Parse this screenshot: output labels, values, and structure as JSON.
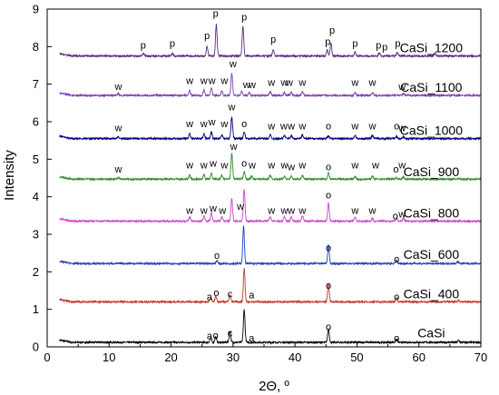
{
  "chart_data": {
    "type": "line",
    "title": "",
    "xlabel": "2Θ, º",
    "ylabel": "Intensity",
    "xlim": [
      0,
      70
    ],
    "ylim": [
      0,
      9
    ],
    "xticks": [
      0,
      10,
      20,
      30,
      40,
      50,
      60,
      70
    ],
    "yticks": [
      0,
      1,
      2,
      3,
      4,
      5,
      6,
      7,
      8,
      9
    ],
    "grid": false,
    "x_range": [
      2,
      70
    ],
    "series": [
      {
        "name": "CaSi",
        "color": "#000000",
        "baseline": 0.12,
        "peaks": [
          [
            26.4,
            0.12
          ],
          [
            27.2,
            0.15
          ],
          [
            29.5,
            0.3
          ],
          [
            31.8,
            0.88
          ],
          [
            45.4,
            0.36
          ],
          [
            56.4,
            0.08
          ],
          [
            66.4,
            0.05
          ]
        ]
      },
      {
        "name": "CaSi_400",
        "color": "#c0392b",
        "baseline": 1.2,
        "peaks": [
          [
            26.4,
            0.1
          ],
          [
            27.2,
            0.14
          ],
          [
            29.5,
            0.18
          ],
          [
            31.8,
            0.9
          ],
          [
            45.4,
            0.48
          ],
          [
            56.4,
            0.12
          ],
          [
            66.4,
            0.05
          ]
        ]
      },
      {
        "name": "CaSi_600",
        "color": "#1f3fbf",
        "baseline": 2.22,
        "peaks": [
          [
            27.4,
            0.08
          ],
          [
            31.7,
            1.0
          ],
          [
            45.4,
            0.48
          ],
          [
            56.4,
            0.08
          ],
          [
            66.3,
            0.05
          ]
        ]
      },
      {
        "name": "CaSi_800",
        "color": "#cc44cc",
        "baseline": 3.35,
        "peaks": [
          [
            23.0,
            0.12
          ],
          [
            25.3,
            0.15
          ],
          [
            26.5,
            0.22
          ],
          [
            28.2,
            0.12
          ],
          [
            29.8,
            0.6
          ],
          [
            31.8,
            0.85
          ],
          [
            36.0,
            0.12
          ],
          [
            38.3,
            0.12
          ],
          [
            39.4,
            0.12
          ],
          [
            41.2,
            0.15
          ],
          [
            45.4,
            0.48
          ],
          [
            49.7,
            0.12
          ],
          [
            52.5,
            0.08
          ],
          [
            56.4,
            0.08
          ],
          [
            57.5,
            0.08
          ]
        ]
      },
      {
        "name": "CaSi_900",
        "color": "#2e8b2e",
        "baseline": 4.47,
        "peaks": [
          [
            11.5,
            0.04
          ],
          [
            23.0,
            0.1
          ],
          [
            25.3,
            0.12
          ],
          [
            26.5,
            0.15
          ],
          [
            28.2,
            0.1
          ],
          [
            29.8,
            0.68
          ],
          [
            31.8,
            0.22
          ],
          [
            33.0,
            0.08
          ],
          [
            36.0,
            0.1
          ],
          [
            38.3,
            0.08
          ],
          [
            39.4,
            0.08
          ],
          [
            41.2,
            0.1
          ],
          [
            45.4,
            0.18
          ],
          [
            49.7,
            0.08
          ],
          [
            52.5,
            0.08
          ],
          [
            56.3,
            0.04
          ],
          [
            57.5,
            0.06
          ]
        ]
      },
      {
        "name": "CaSi_1000",
        "color": "#000080",
        "baseline": 5.55,
        "peaks": [
          [
            11.5,
            0.04
          ],
          [
            23.0,
            0.12
          ],
          [
            25.3,
            0.12
          ],
          [
            26.5,
            0.18
          ],
          [
            28.2,
            0.1
          ],
          [
            29.8,
            0.58
          ],
          [
            31.8,
            0.18
          ],
          [
            36.0,
            0.1
          ],
          [
            38.3,
            0.08
          ],
          [
            39.4,
            0.08
          ],
          [
            41.2,
            0.1
          ],
          [
            45.4,
            0.08
          ],
          [
            49.7,
            0.08
          ],
          [
            52.5,
            0.08
          ],
          [
            56.4,
            0.06
          ],
          [
            57.5,
            0.05
          ]
        ]
      },
      {
        "name": "CaSi_1100",
        "color": "#7b3fb0",
        "baseline": 6.7,
        "peaks": [
          [
            11.5,
            0.04
          ],
          [
            23.0,
            0.12
          ],
          [
            25.3,
            0.14
          ],
          [
            26.5,
            0.2
          ],
          [
            28.2,
            0.12
          ],
          [
            29.8,
            0.58
          ],
          [
            31.4,
            0.12
          ],
          [
            32.6,
            0.08
          ],
          [
            36.0,
            0.1
          ],
          [
            38.3,
            0.08
          ],
          [
            39.4,
            0.08
          ],
          [
            41.2,
            0.1
          ],
          [
            49.7,
            0.08
          ],
          [
            52.5,
            0.08
          ],
          [
            57.5,
            0.05
          ]
        ]
      },
      {
        "name": "CaSi_1200",
        "color": "#5a2d82",
        "baseline": 7.75,
        "peaks": [
          [
            15.5,
            0.08
          ],
          [
            20.2,
            0.07
          ],
          [
            25.8,
            0.25
          ],
          [
            27.3,
            0.85
          ],
          [
            31.6,
            0.8
          ],
          [
            36.5,
            0.18
          ],
          [
            45.2,
            0.16
          ],
          [
            45.8,
            0.35
          ],
          [
            49.7,
            0.1
          ],
          [
            53.6,
            0.08
          ],
          [
            56.5,
            0.1
          ],
          [
            62.6,
            0.08
          ]
        ]
      }
    ],
    "series_labels": [
      {
        "name": "CaSi",
        "x": 62,
        "y": 0.25
      },
      {
        "name": "CaSi_400",
        "x": 62,
        "y": 1.3
      },
      {
        "name": "CaSi_600",
        "x": 62,
        "y": 2.35
      },
      {
        "name": "CaSi_800",
        "x": 62,
        "y": 3.45
      },
      {
        "name": "CaSi_900",
        "x": 62,
        "y": 4.55
      },
      {
        "name": "CaSi_1000",
        "x": 62,
        "y": 5.65
      },
      {
        "name": "CaSi_1100",
        "x": 62,
        "y": 6.8
      },
      {
        "name": "CaSi_1200",
        "x": 62,
        "y": 7.85
      }
    ],
    "annotations": [
      {
        "text": "a",
        "x": 26.2,
        "y": 0.2
      },
      {
        "text": "o",
        "x": 27.2,
        "y": 0.22
      },
      {
        "text": "c",
        "x": 29.5,
        "y": 0.28
      },
      {
        "text": "a",
        "x": 33.0,
        "y": 0.15
      },
      {
        "text": "o",
        "x": 45.4,
        "y": 0.45
      },
      {
        "text": "o",
        "x": 56.4,
        "y": 0.15
      },
      {
        "text": "a",
        "x": 26.2,
        "y": 1.25
      },
      {
        "text": "o",
        "x": 27.3,
        "y": 1.35
      },
      {
        "text": "c",
        "x": 29.5,
        "y": 1.32
      },
      {
        "text": "a",
        "x": 33.0,
        "y": 1.3
      },
      {
        "text": "o",
        "x": 45.4,
        "y": 1.55
      },
      {
        "text": "o",
        "x": 56.4,
        "y": 1.25
      },
      {
        "text": "o",
        "x": 27.4,
        "y": 2.35
      },
      {
        "text": "o",
        "x": 45.4,
        "y": 2.55
      },
      {
        "text": "o",
        "x": 56.4,
        "y": 2.25
      },
      {
        "text": "w",
        "x": 23.0,
        "y": 3.55
      },
      {
        "text": "w",
        "x": 25.3,
        "y": 3.55
      },
      {
        "text": "w",
        "x": 26.8,
        "y": 3.6
      },
      {
        "text": "w",
        "x": 28.3,
        "y": 3.55
      },
      {
        "text": "w",
        "x": 31.2,
        "y": 3.65
      },
      {
        "text": "w",
        "x": 36.2,
        "y": 3.55
      },
      {
        "text": "w",
        "x": 38.3,
        "y": 3.55
      },
      {
        "text": "w",
        "x": 39.4,
        "y": 3.55
      },
      {
        "text": "w",
        "x": 41.2,
        "y": 3.55
      },
      {
        "text": "o",
        "x": 45.4,
        "y": 3.95
      },
      {
        "text": "w",
        "x": 49.7,
        "y": 3.55
      },
      {
        "text": "w",
        "x": 52.5,
        "y": 3.55
      },
      {
        "text": "o",
        "x": 56.2,
        "y": 3.4
      },
      {
        "text": "w",
        "x": 57.3,
        "y": 3.45
      },
      {
        "text": "w",
        "x": 11.5,
        "y": 4.65
      },
      {
        "text": "w",
        "x": 23.0,
        "y": 4.75
      },
      {
        "text": "w",
        "x": 25.3,
        "y": 4.75
      },
      {
        "text": "w",
        "x": 26.8,
        "y": 4.8
      },
      {
        "text": "w",
        "x": 28.6,
        "y": 4.75
      },
      {
        "text": "w",
        "x": 30.1,
        "y": 5.25
      },
      {
        "text": "o",
        "x": 31.8,
        "y": 4.8
      },
      {
        "text": "w",
        "x": 33.1,
        "y": 4.75
      },
      {
        "text": "w",
        "x": 36.2,
        "y": 4.75
      },
      {
        "text": "w",
        "x": 38.3,
        "y": 4.75
      },
      {
        "text": "w",
        "x": 39.4,
        "y": 4.7
      },
      {
        "text": "w",
        "x": 41.2,
        "y": 4.75
      },
      {
        "text": "o",
        "x": 45.4,
        "y": 4.7
      },
      {
        "text": "w",
        "x": 49.7,
        "y": 4.75
      },
      {
        "text": "w",
        "x": 53.0,
        "y": 4.75
      },
      {
        "text": "o",
        "x": 56.3,
        "y": 4.65
      },
      {
        "text": "w",
        "x": 57.3,
        "y": 4.75
      },
      {
        "text": "w",
        "x": 11.5,
        "y": 5.75
      },
      {
        "text": "w",
        "x": 23.0,
        "y": 5.85
      },
      {
        "text": "w",
        "x": 25.3,
        "y": 5.85
      },
      {
        "text": "w",
        "x": 26.6,
        "y": 5.9
      },
      {
        "text": "w",
        "x": 28.6,
        "y": 5.85
      },
      {
        "text": "w",
        "x": 29.8,
        "y": 6.3
      },
      {
        "text": "o",
        "x": 31.8,
        "y": 5.85
      },
      {
        "text": "w",
        "x": 36.2,
        "y": 5.8
      },
      {
        "text": "w",
        "x": 38.2,
        "y": 5.8
      },
      {
        "text": "w",
        "x": 39.4,
        "y": 5.8
      },
      {
        "text": "w",
        "x": 41.2,
        "y": 5.8
      },
      {
        "text": "o",
        "x": 45.4,
        "y": 5.8
      },
      {
        "text": "w",
        "x": 49.7,
        "y": 5.8
      },
      {
        "text": "w",
        "x": 52.5,
        "y": 5.8
      },
      {
        "text": "o",
        "x": 56.4,
        "y": 5.8
      },
      {
        "text": "w",
        "x": 57.3,
        "y": 5.75
      },
      {
        "text": "w",
        "x": 11.5,
        "y": 6.85
      },
      {
        "text": "w",
        "x": 23.0,
        "y": 7.0
      },
      {
        "text": "w",
        "x": 25.3,
        "y": 7.0
      },
      {
        "text": "w",
        "x": 26.6,
        "y": 7.0
      },
      {
        "text": "w",
        "x": 28.6,
        "y": 7.0
      },
      {
        "text": "w",
        "x": 30.0,
        "y": 7.45
      },
      {
        "text": "w",
        "x": 32.2,
        "y": 6.9
      },
      {
        "text": "w",
        "x": 33.1,
        "y": 6.9
      },
      {
        "text": "w",
        "x": 36.2,
        "y": 6.95
      },
      {
        "text": "w",
        "x": 38.3,
        "y": 6.95
      },
      {
        "text": "w",
        "x": 39.1,
        "y": 6.95
      },
      {
        "text": "w",
        "x": 41.2,
        "y": 6.95
      },
      {
        "text": "w",
        "x": 49.7,
        "y": 6.95
      },
      {
        "text": "w",
        "x": 52.5,
        "y": 6.95
      },
      {
        "text": "w",
        "x": 57.3,
        "y": 6.85
      },
      {
        "text": "p",
        "x": 15.5,
        "y": 7.95
      },
      {
        "text": "p",
        "x": 20.2,
        "y": 8.0
      },
      {
        "text": "p",
        "x": 25.8,
        "y": 8.2
      },
      {
        "text": "p",
        "x": 27.2,
        "y": 8.8
      },
      {
        "text": "p",
        "x": 31.8,
        "y": 8.7
      },
      {
        "text": "p",
        "x": 36.5,
        "y": 8.1
      },
      {
        "text": "p",
        "x": 45.3,
        "y": 8.05
      },
      {
        "text": "p",
        "x": 46.0,
        "y": 8.35
      },
      {
        "text": "p",
        "x": 49.7,
        "y": 8.0
      },
      {
        "text": "p",
        "x": 53.5,
        "y": 7.95
      },
      {
        "text": "p",
        "x": 54.5,
        "y": 7.9
      },
      {
        "text": "p",
        "x": 56.6,
        "y": 8.0
      }
    ]
  }
}
